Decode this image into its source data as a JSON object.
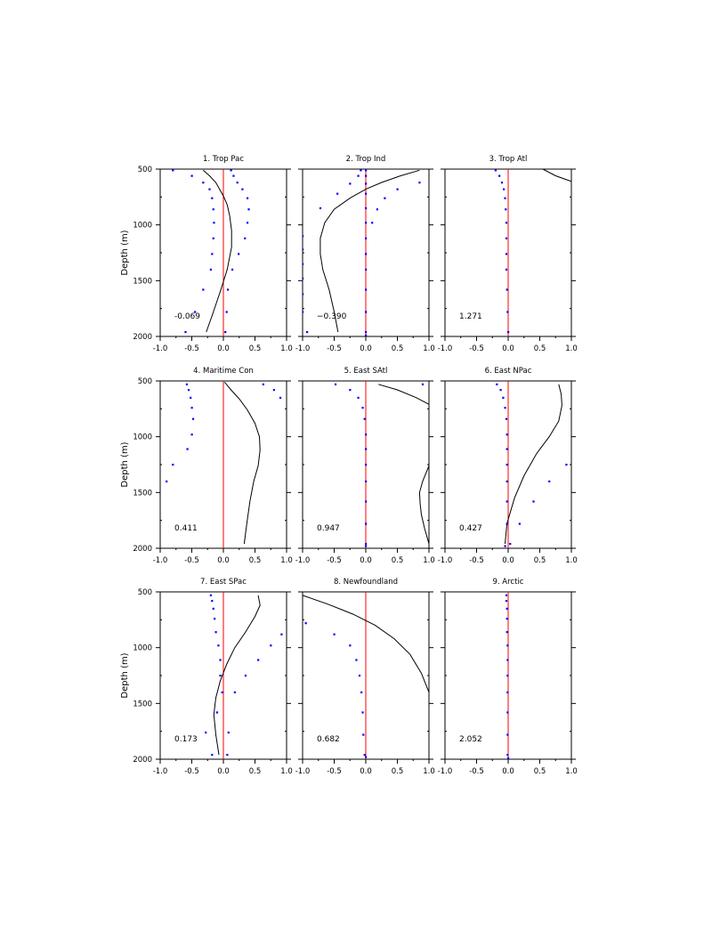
{
  "figure": {
    "colors": {
      "zero_line": "#ff0000",
      "dots": "#0000ff",
      "curve": "#000000",
      "axes": "#000000"
    }
  },
  "chart_data": [
    {
      "type": "line",
      "title": "1. Trop Pac",
      "value_label": "-0.069",
      "ylabel": "Depth (m)",
      "xlim": [
        -1.0,
        1.0
      ],
      "ylim": [
        2000,
        500
      ],
      "x_ticks": [
        "-1.0",
        "-0.5",
        "0.0",
        "0.5",
        "1.0"
      ],
      "y_ticks": [
        "500",
        "1000",
        "1500",
        "2000"
      ],
      "curve": {
        "x": [
          -0.32,
          -0.22,
          -0.12,
          -0.06,
          0.0,
          0.06,
          0.1,
          0.13,
          0.13,
          0.06,
          -0.05,
          -0.17,
          -0.27
        ],
        "depth": [
          510,
          560,
          620,
          680,
          740,
          820,
          920,
          1050,
          1200,
          1400,
          1600,
          1800,
          1960
        ]
      },
      "dots_left": {
        "x": [
          -0.8,
          -0.5,
          -0.32,
          -0.22,
          -0.18,
          -0.16,
          -0.15,
          -0.16,
          -0.18,
          -0.2,
          -0.32,
          -0.45,
          -0.6
        ],
        "depth": [
          510,
          560,
          620,
          680,
          760,
          860,
          980,
          1120,
          1260,
          1400,
          1580,
          1780,
          1960
        ]
      },
      "dots_right": {
        "x": [
          0.12,
          0.16,
          0.22,
          0.3,
          0.38,
          0.4,
          0.38,
          0.34,
          0.24,
          0.14,
          0.07,
          0.05,
          0.03
        ],
        "depth": [
          510,
          560,
          620,
          680,
          760,
          860,
          980,
          1120,
          1260,
          1400,
          1580,
          1780,
          1960
        ]
      }
    },
    {
      "type": "line",
      "title": "2. Trop Ind",
      "value_label": "−0.390",
      "xlim": [
        -1.0,
        1.0
      ],
      "ylim": [
        2000,
        500
      ],
      "x_ticks": [
        "-1.0",
        "-0.5",
        "0.0",
        "0.5",
        "1.0"
      ],
      "y_ticks": [
        "500",
        "1000",
        "1500",
        "2000"
      ],
      "curve": {
        "x": [
          0.85,
          0.55,
          0.25,
          0.0,
          -0.25,
          -0.5,
          -0.65,
          -0.72,
          -0.72,
          -0.68,
          -0.58,
          -0.5,
          -0.44
        ],
        "depth": [
          510,
          560,
          620,
          680,
          760,
          860,
          980,
          1120,
          1260,
          1400,
          1580,
          1780,
          1960
        ]
      },
      "dots_left": {
        "x": [
          -0.08,
          -0.12,
          -0.25,
          -0.45,
          -0.72,
          -1.02,
          -1.0,
          -1.0,
          -1.0,
          -1.0,
          -1.0,
          -1.0,
          -0.93
        ],
        "depth": [
          510,
          560,
          630,
          720,
          850,
          980,
          1100,
          1220,
          1350,
          1480,
          1620,
          1780,
          1960
        ]
      },
      "dots_right": {
        "x": [
          0.0,
          0.0,
          0.0,
          0.0,
          0.0,
          0.0,
          0.0,
          0.0,
          0.0,
          0.0,
          0.0,
          0.0,
          0.0
        ],
        "depth": [
          510,
          560,
          630,
          720,
          850,
          980,
          1120,
          1260,
          1400,
          1580,
          1780,
          1960,
          1990
        ]
      },
      "dots_extra": {
        "x": [
          0.85,
          0.5,
          0.3,
          0.18,
          0.1
        ],
        "depth": [
          620,
          680,
          760,
          860,
          980
        ]
      }
    },
    {
      "type": "line",
      "title": "3. Trop Atl",
      "value_label": "1.271",
      "xlim": [
        -1.0,
        1.0
      ],
      "ylim": [
        2000,
        500
      ],
      "x_ticks": [
        "-1.0",
        "-0.5",
        "0.0",
        "0.5",
        "1.0"
      ],
      "y_ticks": [
        "500",
        "1000",
        "1500",
        "2000"
      ],
      "curve": {
        "x": [
          0.55,
          0.75,
          1.0
        ],
        "depth": [
          500,
          560,
          610
        ]
      },
      "dots_left": {
        "x": [
          -0.2,
          -0.14,
          -0.1,
          -0.07,
          -0.05,
          -0.04,
          -0.03,
          -0.03,
          -0.03,
          -0.03,
          -0.02,
          -0.01,
          0.0
        ],
        "depth": [
          510,
          560,
          620,
          680,
          760,
          860,
          980,
          1120,
          1260,
          1400,
          1580,
          1780,
          1960
        ]
      },
      "dots_right": {
        "x": [],
        "depth": []
      }
    },
    {
      "type": "line",
      "title": "4. Maritime Con",
      "value_label": "0.411",
      "ylabel": "Depth (m)",
      "xlim": [
        -1.0,
        1.0
      ],
      "ylim": [
        2000,
        500
      ],
      "x_ticks": [
        "-1.0",
        "-0.5",
        "0.0",
        "0.5",
        "1.0"
      ],
      "y_ticks": [
        "500",
        "1000",
        "1500",
        "2000"
      ],
      "curve": {
        "x": [
          0.02,
          0.12,
          0.25,
          0.38,
          0.5,
          0.57,
          0.58,
          0.55,
          0.48,
          0.42,
          0.37,
          0.33
        ],
        "depth": [
          510,
          580,
          660,
          760,
          880,
          1000,
          1120,
          1260,
          1400,
          1580,
          1780,
          1960
        ]
      },
      "dots_left": {
        "x": [
          -0.58,
          -0.55,
          -0.52,
          -0.5,
          -0.48,
          -0.5,
          -0.57,
          -0.8,
          -0.9
        ],
        "depth": [
          530,
          580,
          650,
          740,
          840,
          980,
          1110,
          1250,
          1400
        ]
      },
      "dots_right": {
        "x": [
          0.63,
          0.8,
          0.9
        ],
        "depth": [
          530,
          580,
          650
        ]
      }
    },
    {
      "type": "line",
      "title": "5. East SAtl",
      "value_label": "0.947",
      "xlim": [
        -1.0,
        1.0
      ],
      "ylim": [
        2000,
        500
      ],
      "x_ticks": [
        "-1.0",
        "-0.5",
        "0.0",
        "0.5",
        "1.0"
      ],
      "y_ticks": [
        "500",
        "1000",
        "1500",
        "2000"
      ],
      "curve": {
        "x": [
          0.2,
          0.5,
          0.8,
          1.0
        ],
        "depth": [
          530,
          580,
          650,
          710
        ]
      },
      "curve2": {
        "x": [
          1.0,
          0.9,
          0.85,
          0.86,
          0.88,
          0.93,
          1.0
        ],
        "depth": [
          1260,
          1400,
          1500,
          1600,
          1700,
          1820,
          1960
        ]
      },
      "dots_left": {
        "x": [
          -0.48,
          -0.25,
          -0.12,
          -0.05,
          -0.02,
          0.0,
          0.0,
          0.0,
          0.0,
          0.0,
          0.0,
          0.0,
          0.0
        ],
        "depth": [
          530,
          580,
          650,
          740,
          840,
          980,
          1110,
          1250,
          1400,
          1580,
          1780,
          1960,
          1980
        ]
      },
      "dots_right": {
        "x": [
          0.9
        ],
        "depth": [
          530
        ]
      }
    },
    {
      "type": "line",
      "title": "6. East NPac",
      "value_label": "0.427",
      "xlim": [
        -1.0,
        1.0
      ],
      "ylim": [
        2000,
        500
      ],
      "x_ticks": [
        "-1.0",
        "-0.5",
        "0.0",
        "0.5",
        "1.0"
      ],
      "y_ticks": [
        "500",
        "1000",
        "1500",
        "2000"
      ],
      "curve": {
        "x": [
          0.8,
          0.84,
          0.85,
          0.8,
          0.65,
          0.45,
          0.25,
          0.1,
          -0.02,
          -0.05
        ],
        "depth": [
          530,
          620,
          720,
          860,
          1000,
          1150,
          1350,
          1550,
          1780,
          1960
        ]
      },
      "dots_left": {
        "x": [
          -0.18,
          -0.12,
          -0.08,
          -0.05,
          -0.03,
          -0.02,
          -0.02,
          -0.02,
          -0.02,
          -0.02,
          -0.02
        ],
        "depth": [
          530,
          580,
          650,
          740,
          840,
          980,
          1110,
          1250,
          1400,
          1580,
          1780
        ]
      },
      "dots_right": {
        "x": [
          0.92,
          0.65,
          0.4,
          0.18,
          0.03,
          -0.05
        ],
        "depth": [
          1250,
          1400,
          1580,
          1780,
          1960,
          1980
        ]
      }
    },
    {
      "type": "line",
      "title": "7. East SPac",
      "value_label": "0.173",
      "ylabel": "Depth (m)",
      "xlim": [
        -1.0,
        1.0
      ],
      "ylim": [
        2000,
        500
      ],
      "x_ticks": [
        "-1.0",
        "-0.5",
        "0.0",
        "0.5",
        "1.0"
      ],
      "y_ticks": [
        "500",
        "1000",
        "1500",
        "2000"
      ],
      "curve": {
        "x": [
          0.55,
          0.58,
          0.5,
          0.35,
          0.18,
          0.05,
          -0.05,
          -0.12,
          -0.15,
          -0.12,
          -0.07
        ],
        "depth": [
          530,
          620,
          720,
          860,
          1000,
          1150,
          1300,
          1450,
          1600,
          1780,
          1960
        ]
      },
      "dots_left": {
        "x": [
          -0.2,
          -0.18,
          -0.16,
          -0.14,
          -0.12,
          -0.08,
          -0.05,
          -0.05,
          -0.02,
          -0.1,
          -0.28,
          -0.18
        ],
        "depth": [
          530,
          580,
          650,
          740,
          860,
          980,
          1110,
          1250,
          1400,
          1580,
          1760,
          1960
        ]
      },
      "dots_right": {
        "x": [
          0.92,
          0.75,
          0.55,
          0.35,
          0.18,
          0.08,
          0.06
        ],
        "depth": [
          880,
          980,
          1110,
          1250,
          1400,
          1760,
          1960
        ]
      }
    },
    {
      "type": "line",
      "title": "8. Newfoundland",
      "value_label": "0.682",
      "xlim": [
        -1.0,
        1.0
      ],
      "ylim": [
        2000,
        500
      ],
      "x_ticks": [
        "-1.0",
        "-0.5",
        "0.0",
        "0.5",
        "1.0"
      ],
      "y_ticks": [
        "500",
        "1000",
        "1500",
        "2000"
      ],
      "curve": {
        "x": [
          -1.0,
          -0.6,
          -0.2,
          0.15,
          0.45,
          0.7,
          0.88,
          1.0
        ],
        "depth": [
          530,
          610,
          700,
          800,
          920,
          1060,
          1230,
          1400
        ]
      },
      "dots_left": {
        "x": [
          -0.95,
          -0.5,
          -0.25,
          -0.15,
          -0.1,
          -0.07,
          -0.05,
          -0.04,
          -0.02,
          0.0
        ],
        "depth": [
          780,
          880,
          980,
          1110,
          1250,
          1400,
          1580,
          1780,
          1960,
          1980
        ]
      },
      "dots_right": {
        "x": [],
        "depth": []
      }
    },
    {
      "type": "line",
      "title": "9. Arctic",
      "value_label": "2.052",
      "xlim": [
        -1.0,
        1.0
      ],
      "ylim": [
        2000,
        500
      ],
      "x_ticks": [
        "-1.0",
        "-0.5",
        "0.0",
        "0.5",
        "1.0"
      ],
      "y_ticks": [
        "500",
        "1000",
        "1500",
        "2000"
      ],
      "curve": {
        "x": [],
        "depth": []
      },
      "dots_left": {
        "x": [
          -0.03,
          -0.03,
          -0.02,
          -0.02,
          -0.02,
          -0.01,
          -0.01,
          -0.01,
          -0.01,
          -0.01,
          -0.01,
          -0.01,
          0.0
        ],
        "depth": [
          530,
          580,
          650,
          740,
          860,
          980,
          1110,
          1250,
          1400,
          1580,
          1780,
          1960,
          1990
        ]
      },
      "dots_right": {
        "x": [],
        "depth": []
      }
    }
  ]
}
